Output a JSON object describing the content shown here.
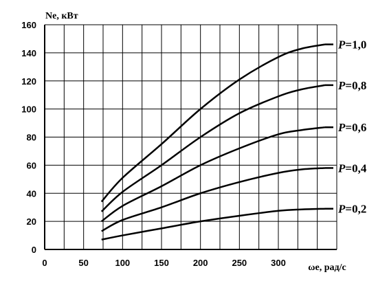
{
  "chart_data": {
    "type": "line",
    "title": "",
    "xlabel": "ωe, рад/с",
    "ylabel": "Ne, кВт",
    "xlim": [
      0,
      375
    ],
    "ylim": [
      0,
      160
    ],
    "x_ticks": [
      "0",
      "50",
      "100",
      "150",
      "200",
      "250",
      "300"
    ],
    "y_ticks": [
      "0",
      "20",
      "40",
      "60",
      "80",
      "100",
      "120",
      "140",
      "160"
    ],
    "grid": true,
    "legend": "labels at line ends (right)",
    "series": [
      {
        "name": "P=1,0",
        "label_letter": "P",
        "label_value": "=1,0",
        "x": [
          73,
          100,
          150,
          200,
          250,
          300,
          330,
          360
        ],
        "y": [
          34,
          51,
          75,
          100,
          121,
          137,
          143,
          146
        ]
      },
      {
        "name": "P=0,8",
        "label_letter": "P",
        "label_value": "=0,8",
        "x": [
          73,
          100,
          150,
          200,
          250,
          300,
          330,
          360
        ],
        "y": [
          27,
          41,
          60,
          80,
          97,
          109,
          114,
          117
        ]
      },
      {
        "name": "P=0,6",
        "label_letter": "P",
        "label_value": "=0,6",
        "x": [
          73,
          100,
          150,
          200,
          250,
          300,
          330,
          360
        ],
        "y": [
          20,
          31,
          45,
          60,
          72,
          82,
          85,
          87
        ]
      },
      {
        "name": "P=0,4",
        "label_letter": "P",
        "label_value": "=0,4",
        "x": [
          73,
          100,
          150,
          200,
          250,
          300,
          330,
          360
        ],
        "y": [
          13,
          21,
          30,
          40,
          48,
          54.5,
          57,
          58
        ]
      },
      {
        "name": "P=0,2",
        "label_letter": "P",
        "label_value": "=0,2",
        "x": [
          73,
          100,
          150,
          200,
          250,
          300,
          330,
          360
        ],
        "y": [
          7,
          10,
          15,
          20,
          24,
          27.5,
          28.5,
          29
        ]
      }
    ],
    "line_color": "#000000",
    "grid_color": "#000000"
  }
}
